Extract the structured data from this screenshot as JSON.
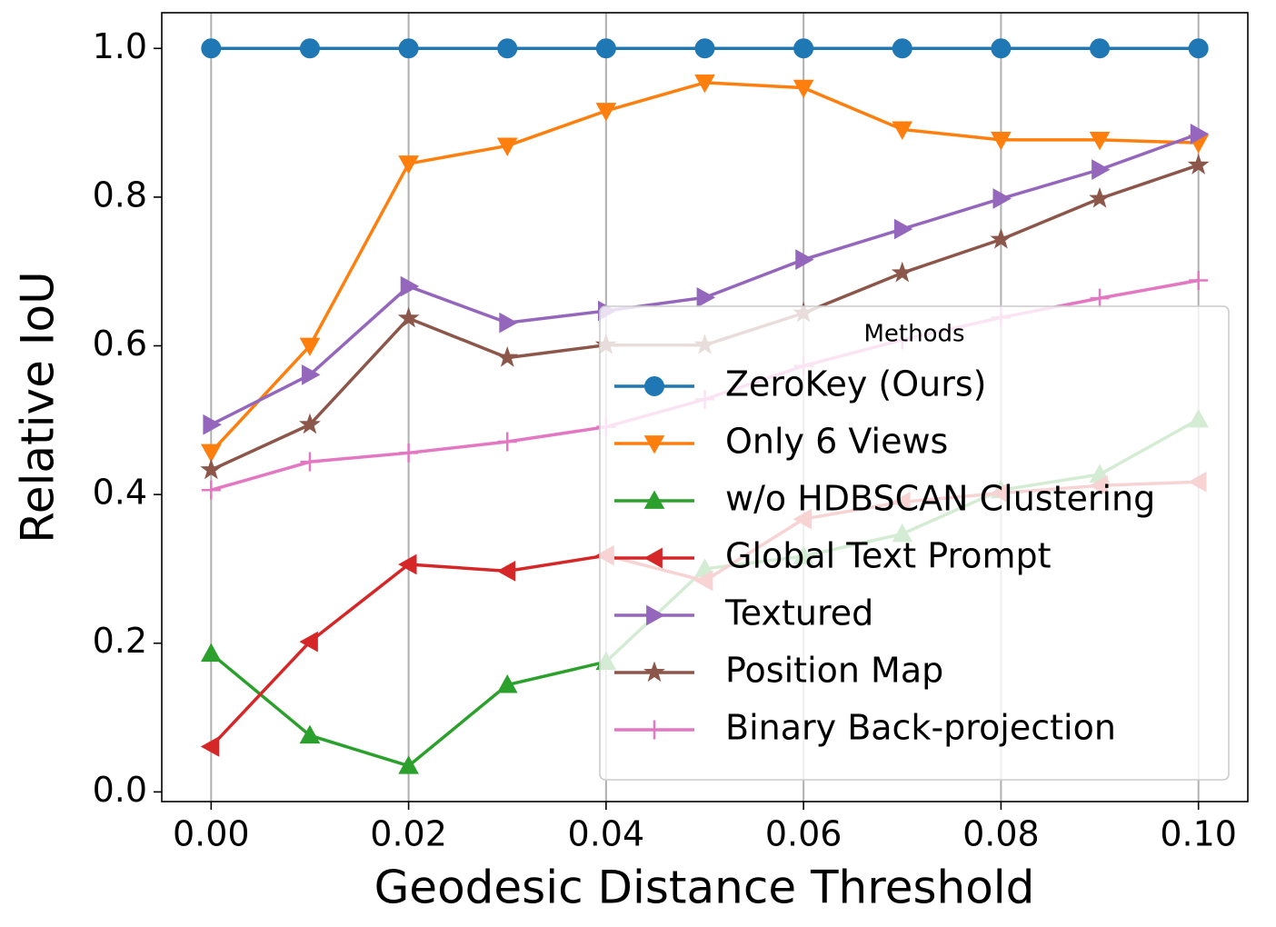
{
  "chart_data": {
    "type": "line",
    "x_label": "Geodesic Distance Threshold",
    "y_label": "Relative IoU",
    "x": [
      0.0,
      0.01,
      0.02,
      0.03,
      0.04,
      0.05,
      0.06,
      0.07,
      0.08,
      0.09,
      0.1
    ],
    "xlim": [
      -0.005,
      0.105
    ],
    "ylim": [
      -0.013,
      1.048
    ],
    "xticks": [
      {
        "value": 0.0,
        "label": "0.00"
      },
      {
        "value": 0.02,
        "label": "0.02"
      },
      {
        "value": 0.04,
        "label": "0.04"
      },
      {
        "value": 0.06,
        "label": "0.06"
      },
      {
        "value": 0.08,
        "label": "0.08"
      },
      {
        "value": 0.1,
        "label": "0.10"
      }
    ],
    "yticks": [
      {
        "value": 0.0,
        "label": "0.0"
      },
      {
        "value": 0.2,
        "label": "0.2"
      },
      {
        "value": 0.4,
        "label": "0.4"
      },
      {
        "value": 0.6,
        "label": "0.6"
      },
      {
        "value": 0.8,
        "label": "0.8"
      },
      {
        "value": 1.0,
        "label": "1.0"
      }
    ],
    "grid": "x",
    "legend_title": "Methods",
    "legend_loc": "lower right",
    "series": [
      {
        "name": "ZeroKey (Ours)",
        "color": "#1f77b4",
        "marker": "circle",
        "values": [
          1.0,
          1.0,
          1.0,
          1.0,
          1.0,
          1.0,
          1.0,
          1.0,
          1.0,
          1.0,
          1.0
        ]
      },
      {
        "name": "Only 6 Views",
        "color": "#ff7f0e",
        "marker": "triangle-down",
        "values": [
          0.457,
          0.6,
          0.845,
          0.869,
          0.916,
          0.954,
          0.947,
          0.891,
          0.877,
          0.877,
          0.873
        ]
      },
      {
        "name": "w/o HDBSCAN Clustering",
        "color": "#2ca02c",
        "marker": "triangle-up",
        "values": [
          0.186,
          0.076,
          0.035,
          0.144,
          0.175,
          0.3,
          0.317,
          0.347,
          0.406,
          0.427,
          0.501
        ]
      },
      {
        "name": "Global Text Prompt",
        "color": "#d62728",
        "marker": "triangle-left",
        "values": [
          0.061,
          0.202,
          0.306,
          0.297,
          0.318,
          0.284,
          0.367,
          0.39,
          0.402,
          0.412,
          0.417
        ]
      },
      {
        "name": "Textured",
        "color": "#9467bd",
        "marker": "triangle-right",
        "values": [
          0.494,
          0.561,
          0.68,
          0.631,
          0.647,
          0.665,
          0.716,
          0.757,
          0.798,
          0.837,
          0.885
        ]
      },
      {
        "name": "Position Map",
        "color": "#8c564b",
        "marker": "star",
        "values": [
          0.433,
          0.494,
          0.637,
          0.584,
          0.601,
          0.601,
          0.644,
          0.698,
          0.743,
          0.798,
          0.843
        ]
      },
      {
        "name": "Binary Back-projection",
        "color": "#e377c2",
        "marker": "plus",
        "values": [
          0.406,
          0.444,
          0.456,
          0.471,
          0.491,
          0.528,
          0.573,
          0.608,
          0.638,
          0.664,
          0.688
        ]
      }
    ]
  }
}
